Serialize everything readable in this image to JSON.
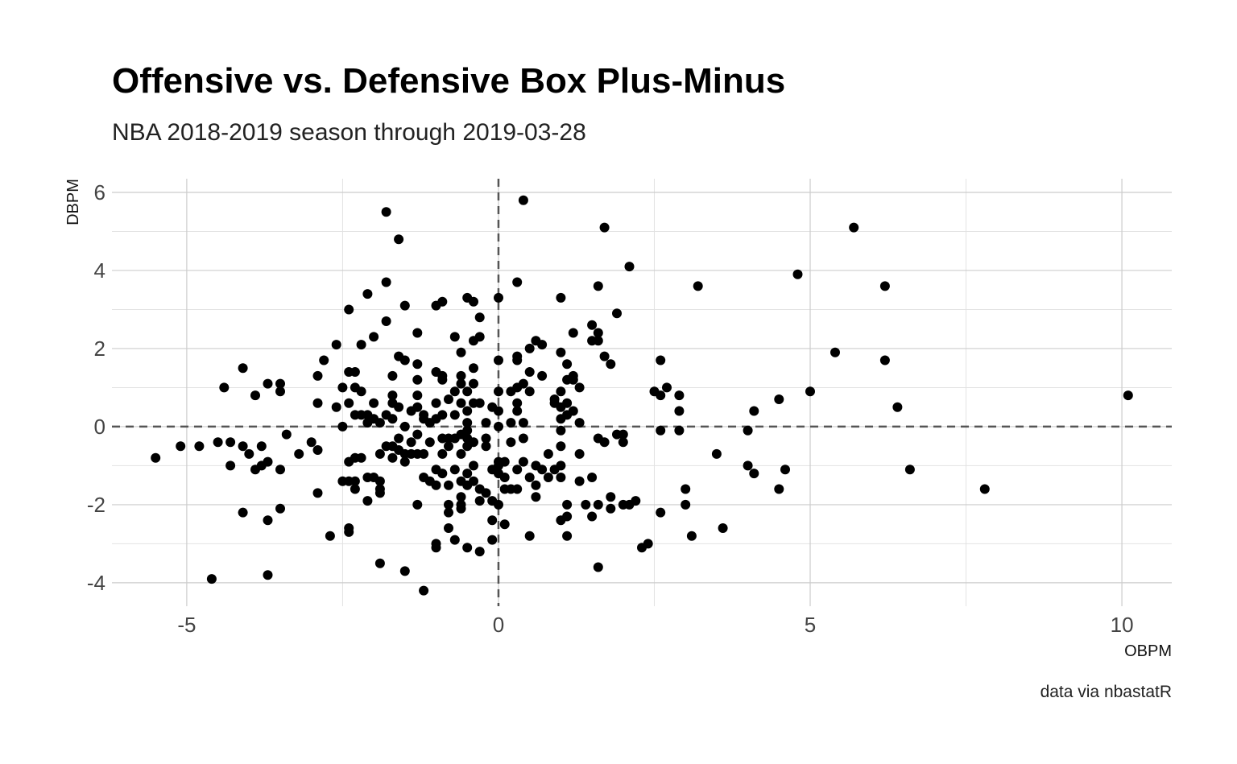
{
  "chart_data": {
    "type": "scatter",
    "title": "Offensive vs. Defensive Box Plus-Minus",
    "subtitle": "NBA 2018-2019 season through 2019-03-28",
    "xlabel": "OBPM",
    "ylabel": "DBPM",
    "caption": "data via nbastatR",
    "xlim": [
      -6.2,
      10.8
    ],
    "ylim": [
      -4.6,
      6.35
    ],
    "x_ticks": [
      -5,
      0,
      5,
      10
    ],
    "x_tick_labels": [
      "-5",
      "0",
      "5",
      "10"
    ],
    "y_ticks": [
      -4,
      -2,
      0,
      2,
      4,
      6
    ],
    "y_tick_labels": [
      "-4",
      "-2",
      "0",
      "2",
      "4",
      "6"
    ],
    "grid": true,
    "reference_lines": {
      "x": 0,
      "y": 0,
      "style": "dashed"
    },
    "point_color": "#000000",
    "points": [
      [
        -5.5,
        -0.8
      ],
      [
        -5.1,
        -0.5
      ],
      [
        -4.8,
        -0.5
      ],
      [
        -4.6,
        -3.9
      ],
      [
        -4.5,
        -0.4
      ],
      [
        -4.3,
        -0.4
      ],
      [
        -4.3,
        -1.0
      ],
      [
        -4.4,
        1.0
      ],
      [
        -4.1,
        1.5
      ],
      [
        -4.1,
        -0.5
      ],
      [
        -4.1,
        -2.2
      ],
      [
        -4.0,
        -0.7
      ],
      [
        -3.9,
        0.8
      ],
      [
        -3.9,
        -1.1
      ],
      [
        -3.8,
        -1.0
      ],
      [
        -3.8,
        -0.5
      ],
      [
        -3.7,
        -0.9
      ],
      [
        -3.7,
        -2.4
      ],
      [
        -3.7,
        -3.8
      ],
      [
        -3.7,
        1.1
      ],
      [
        -3.5,
        1.1
      ],
      [
        -3.5,
        0.9
      ],
      [
        -3.5,
        -1.1
      ],
      [
        -3.5,
        -2.1
      ],
      [
        -3.4,
        -0.2
      ],
      [
        -3.2,
        -0.7
      ],
      [
        -3.0,
        -0.4
      ],
      [
        -2.9,
        1.3
      ],
      [
        -2.9,
        0.6
      ],
      [
        -2.9,
        -0.6
      ],
      [
        -2.9,
        -1.7
      ],
      [
        -2.8,
        1.7
      ],
      [
        -2.7,
        -2.8
      ],
      [
        -2.6,
        2.1
      ],
      [
        -2.6,
        0.5
      ],
      [
        -2.5,
        1.0
      ],
      [
        -2.5,
        0.0
      ],
      [
        -2.5,
        -1.4
      ],
      [
        -2.4,
        3.0
      ],
      [
        -2.4,
        1.4
      ],
      [
        -2.4,
        0.6
      ],
      [
        -2.4,
        -0.9
      ],
      [
        -2.4,
        -1.4
      ],
      [
        -2.4,
        -2.6
      ],
      [
        -2.4,
        -2.7
      ],
      [
        -2.3,
        1.4
      ],
      [
        -2.3,
        1.0
      ],
      [
        -2.3,
        0.3
      ],
      [
        -2.3,
        -0.8
      ],
      [
        -2.3,
        -1.4
      ],
      [
        -2.3,
        -1.6
      ],
      [
        -2.2,
        2.1
      ],
      [
        -2.2,
        0.9
      ],
      [
        -2.2,
        0.3
      ],
      [
        -2.2,
        -0.8
      ],
      [
        -2.1,
        3.4
      ],
      [
        -2.1,
        0.3
      ],
      [
        -2.1,
        0.1
      ],
      [
        -2.1,
        -1.3
      ],
      [
        -2.1,
        -1.9
      ],
      [
        -2.0,
        2.3
      ],
      [
        -2.0,
        0.6
      ],
      [
        -2.0,
        0.2
      ],
      [
        -2.0,
        -1.3
      ],
      [
        -1.9,
        0.1
      ],
      [
        -1.9,
        -0.7
      ],
      [
        -1.9,
        -1.4
      ],
      [
        -1.9,
        -1.6
      ],
      [
        -1.9,
        -1.7
      ],
      [
        -1.9,
        -3.5
      ],
      [
        -1.8,
        5.5
      ],
      [
        -1.8,
        3.7
      ],
      [
        -1.8,
        2.7
      ],
      [
        -1.8,
        0.3
      ],
      [
        -1.8,
        -0.5
      ],
      [
        -1.7,
        1.3
      ],
      [
        -1.7,
        0.8
      ],
      [
        -1.7,
        0.6
      ],
      [
        -1.7,
        0.2
      ],
      [
        -1.7,
        -0.5
      ],
      [
        -1.7,
        -0.8
      ],
      [
        -1.6,
        4.8
      ],
      [
        -1.6,
        1.8
      ],
      [
        -1.6,
        0.5
      ],
      [
        -1.6,
        -0.3
      ],
      [
        -1.6,
        -0.6
      ],
      [
        -1.5,
        3.1
      ],
      [
        -1.5,
        1.7
      ],
      [
        -1.5,
        0.0
      ],
      [
        -1.5,
        -0.7
      ],
      [
        -1.5,
        -0.9
      ],
      [
        -1.5,
        -3.7
      ],
      [
        -1.4,
        0.4
      ],
      [
        -1.4,
        -0.4
      ],
      [
        -1.4,
        -0.7
      ],
      [
        -1.3,
        2.4
      ],
      [
        -1.3,
        1.6
      ],
      [
        -1.3,
        1.2
      ],
      [
        -1.3,
        0.8
      ],
      [
        -1.3,
        0.5
      ],
      [
        -1.3,
        -0.2
      ],
      [
        -1.3,
        -0.7
      ],
      [
        -1.3,
        -2.0
      ],
      [
        -1.2,
        0.3
      ],
      [
        -1.2,
        0.2
      ],
      [
        -1.2,
        -0.7
      ],
      [
        -1.2,
        -1.3
      ],
      [
        -1.2,
        -4.2
      ],
      [
        -1.1,
        0.1
      ],
      [
        -1.1,
        -0.4
      ],
      [
        -1.1,
        -1.4
      ],
      [
        -1.0,
        3.1
      ],
      [
        -1.0,
        1.4
      ],
      [
        -1.0,
        0.6
      ],
      [
        -1.0,
        0.2
      ],
      [
        -1.0,
        -1.1
      ],
      [
        -1.0,
        -1.5
      ],
      [
        -1.0,
        -3.0
      ],
      [
        -1.0,
        -3.1
      ],
      [
        -0.9,
        3.2
      ],
      [
        -0.9,
        1.2
      ],
      [
        -0.9,
        1.3
      ],
      [
        -0.9,
        0.3
      ],
      [
        -0.9,
        -0.3
      ],
      [
        -0.9,
        -0.7
      ],
      [
        -0.9,
        -1.2
      ],
      [
        -0.8,
        0.7
      ],
      [
        -0.8,
        -0.3
      ],
      [
        -0.8,
        -0.5
      ],
      [
        -0.8,
        -1.5
      ],
      [
        -0.8,
        -2.0
      ],
      [
        -0.8,
        -2.2
      ],
      [
        -0.8,
        -2.6
      ],
      [
        -0.7,
        2.3
      ],
      [
        -0.7,
        0.9
      ],
      [
        -0.7,
        0.3
      ],
      [
        -0.7,
        -0.3
      ],
      [
        -0.7,
        -1.1
      ],
      [
        -0.7,
        -2.9
      ],
      [
        -0.6,
        1.9
      ],
      [
        -0.6,
        1.3
      ],
      [
        -0.6,
        1.1
      ],
      [
        -0.6,
        0.6
      ],
      [
        -0.6,
        -0.2
      ],
      [
        -0.6,
        -0.7
      ],
      [
        -0.6,
        -1.4
      ],
      [
        -0.6,
        -1.8
      ],
      [
        -0.6,
        -2.0
      ],
      [
        -0.6,
        -2.1
      ],
      [
        -0.5,
        3.3
      ],
      [
        -0.5,
        0.9
      ],
      [
        -0.5,
        0.4
      ],
      [
        -0.5,
        0.1
      ],
      [
        -0.5,
        -0.1
      ],
      [
        -0.5,
        -0.3
      ],
      [
        -0.5,
        -0.5
      ],
      [
        -0.5,
        -1.2
      ],
      [
        -0.5,
        -1.5
      ],
      [
        -0.5,
        -3.1
      ],
      [
        -0.4,
        3.2
      ],
      [
        -0.4,
        2.2
      ],
      [
        -0.4,
        1.5
      ],
      [
        -0.4,
        1.1
      ],
      [
        -0.4,
        0.6
      ],
      [
        -0.4,
        -0.4
      ],
      [
        -0.4,
        -1.0
      ],
      [
        -0.4,
        -1.4
      ],
      [
        -0.3,
        2.8
      ],
      [
        -0.3,
        2.3
      ],
      [
        -0.3,
        0.6
      ],
      [
        -0.3,
        -1.6
      ],
      [
        -0.3,
        -1.9
      ],
      [
        -0.3,
        -3.2
      ],
      [
        -0.2,
        0.1
      ],
      [
        -0.2,
        -0.3
      ],
      [
        -0.2,
        -0.5
      ],
      [
        -0.2,
        -1.7
      ],
      [
        -0.1,
        0.5
      ],
      [
        -0.1,
        -1.1
      ],
      [
        -0.1,
        -1.9
      ],
      [
        -0.1,
        -2.4
      ],
      [
        -0.1,
        -2.9
      ],
      [
        0.0,
        3.3
      ],
      [
        0.0,
        1.7
      ],
      [
        0.0,
        0.9
      ],
      [
        0.0,
        0.4
      ],
      [
        0.0,
        0.0
      ],
      [
        0.0,
        -0.9
      ],
      [
        0.0,
        -1.0
      ],
      [
        0.0,
        -1.2
      ],
      [
        0.0,
        -2.0
      ],
      [
        0.1,
        -0.9
      ],
      [
        0.1,
        -1.3
      ],
      [
        0.1,
        -1.6
      ],
      [
        0.1,
        -2.5
      ],
      [
        0.2,
        0.9
      ],
      [
        0.2,
        0.1
      ],
      [
        0.2,
        -0.4
      ],
      [
        0.2,
        -1.6
      ],
      [
        0.3,
        3.7
      ],
      [
        0.3,
        1.8
      ],
      [
        0.3,
        1.7
      ],
      [
        0.3,
        1.0
      ],
      [
        0.3,
        0.6
      ],
      [
        0.3,
        0.4
      ],
      [
        0.3,
        -1.1
      ],
      [
        0.3,
        -1.6
      ],
      [
        0.4,
        5.8
      ],
      [
        0.4,
        1.1
      ],
      [
        0.4,
        0.1
      ],
      [
        0.4,
        -0.3
      ],
      [
        0.4,
        -0.9
      ],
      [
        0.5,
        2.0
      ],
      [
        0.5,
        1.4
      ],
      [
        0.5,
        0.9
      ],
      [
        0.5,
        -1.3
      ],
      [
        0.5,
        -2.8
      ],
      [
        0.6,
        2.2
      ],
      [
        0.6,
        -1.0
      ],
      [
        0.6,
        -1.5
      ],
      [
        0.6,
        -1.8
      ],
      [
        0.7,
        2.1
      ],
      [
        0.7,
        1.3
      ],
      [
        0.7,
        -1.1
      ],
      [
        0.8,
        -0.7
      ],
      [
        0.8,
        -1.3
      ],
      [
        0.9,
        0.7
      ],
      [
        0.9,
        0.6
      ],
      [
        0.9,
        -1.1
      ],
      [
        1.0,
        3.3
      ],
      [
        1.0,
        1.9
      ],
      [
        1.0,
        0.9
      ],
      [
        1.0,
        0.5
      ],
      [
        1.0,
        0.2
      ],
      [
        1.0,
        -0.1
      ],
      [
        1.0,
        -0.5
      ],
      [
        1.0,
        -1.0
      ],
      [
        1.0,
        -1.3
      ],
      [
        1.0,
        -2.4
      ],
      [
        1.1,
        1.6
      ],
      [
        1.1,
        1.2
      ],
      [
        1.1,
        0.6
      ],
      [
        1.1,
        0.3
      ],
      [
        1.1,
        -2.0
      ],
      [
        1.1,
        -2.3
      ],
      [
        1.1,
        -2.8
      ],
      [
        1.2,
        2.4
      ],
      [
        1.2,
        1.3
      ],
      [
        1.2,
        1.2
      ],
      [
        1.2,
        0.4
      ],
      [
        1.3,
        1.0
      ],
      [
        1.3,
        0.1
      ],
      [
        1.3,
        -0.7
      ],
      [
        1.3,
        -1.4
      ],
      [
        1.4,
        -2.0
      ],
      [
        1.5,
        2.6
      ],
      [
        1.5,
        2.2
      ],
      [
        1.5,
        -1.3
      ],
      [
        1.5,
        -2.3
      ],
      [
        1.6,
        3.6
      ],
      [
        1.6,
        2.4
      ],
      [
        1.6,
        2.2
      ],
      [
        1.6,
        -0.3
      ],
      [
        1.6,
        -2.0
      ],
      [
        1.6,
        -3.6
      ],
      [
        1.7,
        5.1
      ],
      [
        1.7,
        1.8
      ],
      [
        1.7,
        -0.4
      ],
      [
        1.8,
        1.6
      ],
      [
        1.8,
        -1.8
      ],
      [
        1.8,
        -2.1
      ],
      [
        1.9,
        2.9
      ],
      [
        1.9,
        -0.2
      ],
      [
        2.0,
        -0.2
      ],
      [
        2.0,
        -0.4
      ],
      [
        2.0,
        -2.0
      ],
      [
        2.1,
        4.1
      ],
      [
        2.1,
        -2.0
      ],
      [
        2.2,
        -1.9
      ],
      [
        2.3,
        -3.1
      ],
      [
        2.4,
        -3.0
      ],
      [
        2.5,
        0.9
      ],
      [
        2.6,
        1.7
      ],
      [
        2.6,
        0.8
      ],
      [
        2.6,
        -0.1
      ],
      [
        2.6,
        -2.2
      ],
      [
        2.7,
        1.0
      ],
      [
        2.9,
        0.8
      ],
      [
        2.9,
        0.4
      ],
      [
        2.9,
        -0.1
      ],
      [
        3.0,
        -1.6
      ],
      [
        3.0,
        -2.0
      ],
      [
        3.1,
        -2.8
      ],
      [
        3.2,
        3.6
      ],
      [
        3.5,
        -0.7
      ],
      [
        3.6,
        -2.6
      ],
      [
        4.0,
        -0.1
      ],
      [
        4.0,
        -1.0
      ],
      [
        4.1,
        0.4
      ],
      [
        4.1,
        -1.2
      ],
      [
        4.5,
        0.7
      ],
      [
        4.5,
        -1.6
      ],
      [
        4.6,
        -1.1
      ],
      [
        4.8,
        3.9
      ],
      [
        5.0,
        0.9
      ],
      [
        5.4,
        1.9
      ],
      [
        5.7,
        5.1
      ],
      [
        6.2,
        3.6
      ],
      [
        6.2,
        1.7
      ],
      [
        6.4,
        0.5
      ],
      [
        6.6,
        -1.1
      ],
      [
        7.8,
        -1.6
      ],
      [
        10.1,
        0.8
      ]
    ]
  }
}
